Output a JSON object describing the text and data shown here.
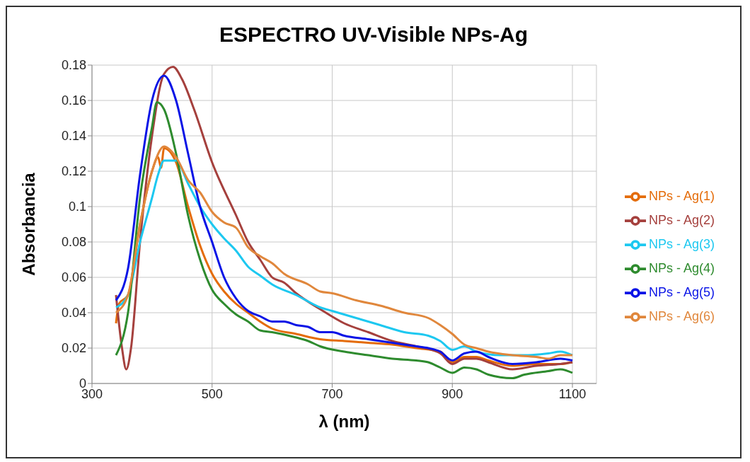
{
  "chart_data": {
    "type": "line",
    "title": "ESPECTRO UV-Visible NPs-Ag",
    "xlabel": "λ (nm)",
    "ylabel": "Absorbancia",
    "xlim": [
      300,
      1140
    ],
    "xticks": [
      300,
      500,
      700,
      900,
      1100
    ],
    "ylim": [
      0,
      0.18
    ],
    "yticks": [
      0,
      0.02,
      0.04,
      0.06,
      0.08,
      0.1,
      0.12,
      0.14,
      0.16,
      0.18
    ],
    "grid": true,
    "legend": "right",
    "marker": "none",
    "line_style": "solid",
    "series": [
      {
        "name": "NPs - Ag(1)",
        "color": "#e46c0a",
        "x": [
          340,
          345,
          360,
          380,
          400,
          410,
          415,
          420,
          440,
          460,
          480,
          500,
          520,
          540,
          560,
          580,
          600,
          640,
          680,
          720,
          760,
          800,
          840,
          880,
          900,
          920,
          940,
          960,
          1000,
          1040,
          1080,
          1100
        ],
        "values": [
          0.034,
          0.045,
          0.05,
          0.09,
          0.12,
          0.128,
          0.122,
          0.133,
          0.125,
          0.1,
          0.078,
          0.062,
          0.052,
          0.045,
          0.04,
          0.035,
          0.031,
          0.028,
          0.025,
          0.024,
          0.023,
          0.022,
          0.02,
          0.018,
          0.012,
          0.015,
          0.015,
          0.013,
          0.01,
          0.011,
          0.011,
          0.012
        ]
      },
      {
        "name": "NPs - Ag(2)",
        "color": "#a5403d",
        "x": [
          340,
          350,
          357,
          365,
          380,
          400,
          420,
          435,
          450,
          470,
          500,
          540,
          560,
          580,
          600,
          620,
          640,
          680,
          720,
          760,
          800,
          840,
          880,
          900,
          920,
          940,
          960,
          1000,
          1040,
          1080,
          1100
        ],
        "values": [
          0.05,
          0.02,
          0.008,
          0.02,
          0.08,
          0.14,
          0.175,
          0.179,
          0.172,
          0.155,
          0.125,
          0.095,
          0.08,
          0.07,
          0.06,
          0.057,
          0.051,
          0.042,
          0.034,
          0.029,
          0.024,
          0.021,
          0.017,
          0.011,
          0.014,
          0.014,
          0.012,
          0.008,
          0.01,
          0.011,
          0.012
        ]
      },
      {
        "name": "NPs - Ag(3)",
        "color": "#1dc8f0",
        "x": [
          340,
          360,
          380,
          400,
          410,
          420,
          440,
          460,
          480,
          500,
          520,
          540,
          560,
          580,
          600,
          640,
          680,
          700,
          740,
          780,
          820,
          860,
          880,
          900,
          920,
          940,
          980,
          1020,
          1060,
          1080,
          1100
        ],
        "values": [
          0.043,
          0.05,
          0.08,
          0.105,
          0.118,
          0.126,
          0.126,
          0.113,
          0.1,
          0.09,
          0.082,
          0.075,
          0.066,
          0.061,
          0.056,
          0.05,
          0.043,
          0.041,
          0.037,
          0.033,
          0.029,
          0.027,
          0.024,
          0.019,
          0.021,
          0.018,
          0.016,
          0.016,
          0.017,
          0.018,
          0.016
        ]
      },
      {
        "name": "NPs - Ag(4)",
        "color": "#2e8b2e",
        "x": [
          340,
          360,
          380,
          400,
          408,
          420,
          440,
          460,
          480,
          500,
          520,
          540,
          560,
          580,
          600,
          640,
          660,
          680,
          720,
          760,
          800,
          840,
          860,
          880,
          900,
          920,
          940,
          960,
          1000,
          1020,
          1060,
          1080,
          1100
        ],
        "values": [
          0.016,
          0.04,
          0.105,
          0.145,
          0.159,
          0.155,
          0.13,
          0.095,
          0.07,
          0.053,
          0.045,
          0.039,
          0.035,
          0.03,
          0.029,
          0.026,
          0.024,
          0.021,
          0.018,
          0.016,
          0.014,
          0.013,
          0.012,
          0.009,
          0.006,
          0.009,
          0.008,
          0.005,
          0.003,
          0.005,
          0.007,
          0.008,
          0.006
        ]
      },
      {
        "name": "NPs - Ag(5)",
        "color": "#0a14e6",
        "x": [
          340,
          360,
          380,
          400,
          420,
          440,
          460,
          480,
          500,
          520,
          540,
          560,
          580,
          600,
          620,
          640,
          660,
          680,
          700,
          720,
          760,
          800,
          840,
          860,
          880,
          900,
          920,
          940,
          960,
          1000,
          1040,
          1080,
          1100
        ],
        "values": [
          0.047,
          0.065,
          0.118,
          0.16,
          0.174,
          0.16,
          0.13,
          0.1,
          0.08,
          0.06,
          0.048,
          0.041,
          0.038,
          0.035,
          0.035,
          0.033,
          0.032,
          0.029,
          0.029,
          0.027,
          0.025,
          0.023,
          0.021,
          0.02,
          0.018,
          0.013,
          0.017,
          0.018,
          0.015,
          0.011,
          0.012,
          0.014,
          0.013
        ]
      },
      {
        "name": "NPs - Ag(6)",
        "color": "#e0873c",
        "x": [
          340,
          360,
          380,
          400,
          420,
          440,
          460,
          480,
          500,
          520,
          540,
          560,
          580,
          600,
          620,
          660,
          680,
          700,
          740,
          780,
          820,
          860,
          880,
          900,
          920,
          940,
          960,
          1000,
          1040,
          1060,
          1080,
          1100
        ],
        "values": [
          0.04,
          0.05,
          0.09,
          0.12,
          0.134,
          0.128,
          0.115,
          0.108,
          0.097,
          0.091,
          0.088,
          0.077,
          0.072,
          0.068,
          0.062,
          0.056,
          0.052,
          0.051,
          0.047,
          0.044,
          0.04,
          0.037,
          0.033,
          0.028,
          0.022,
          0.02,
          0.018,
          0.016,
          0.015,
          0.014,
          0.016,
          0.016
        ]
      }
    ]
  }
}
